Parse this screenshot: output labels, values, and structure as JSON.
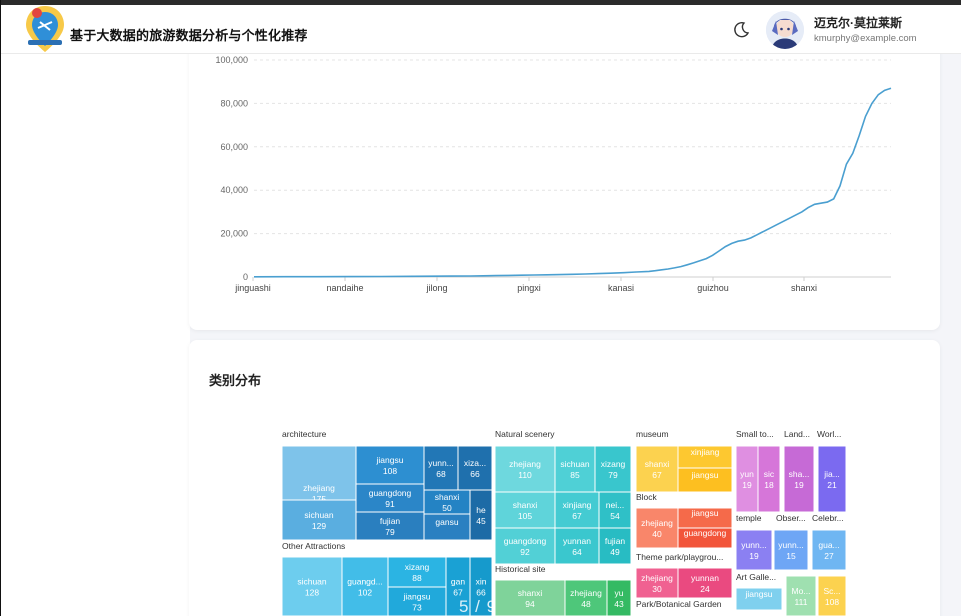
{
  "header": {
    "app_title": "基于大数据的旅游数据分析与个性化推荐",
    "user_name": "迈克尔·莫拉莱斯",
    "user_email": "kmurphy@example.com"
  },
  "icons": {
    "logo": "map-pin-logo",
    "theme_toggle": "moon-icon",
    "avatar": "avatar-image"
  },
  "section2": {
    "title": "类别分布"
  },
  "page_indicator": "5 / 9",
  "chart_data": [
    {
      "type": "line",
      "color": "#4a9fd0",
      "yticks": [
        "0",
        "20,000",
        "40,000",
        "60,000",
        "80,000",
        "100,000"
      ],
      "xticks": [
        "jinguashi",
        "nandaihe",
        "jilong",
        "pingxi",
        "kanasi",
        "guizhou",
        "shanxi"
      ],
      "ylim": [
        0,
        100000
      ],
      "grid": true,
      "points": [
        [
          0,
          100
        ],
        [
          5,
          130
        ],
        [
          10,
          160
        ],
        [
          15,
          200
        ],
        [
          20,
          250
        ],
        [
          25,
          300
        ],
        [
          28,
          350
        ],
        [
          31,
          400
        ],
        [
          34,
          480
        ],
        [
          36,
          560
        ],
        [
          38,
          640
        ],
        [
          40,
          730
        ],
        [
          42,
          820
        ],
        [
          44,
          900
        ],
        [
          46,
          1000
        ],
        [
          48,
          1100
        ],
        [
          50,
          1250
        ],
        [
          52,
          1400
        ],
        [
          54,
          1550
        ],
        [
          56,
          1750
        ],
        [
          58,
          2000
        ],
        [
          60,
          2300
        ],
        [
          62,
          2600
        ],
        [
          63,
          2900
        ],
        [
          64,
          3300
        ],
        [
          65,
          3700
        ],
        [
          66,
          4200
        ],
        [
          67,
          4800
        ],
        [
          68,
          5600
        ],
        [
          69,
          6500
        ],
        [
          70,
          7500
        ],
        [
          71,
          8500
        ],
        [
          72,
          10000
        ],
        [
          73,
          12000
        ],
        [
          74,
          14000
        ],
        [
          75,
          15500
        ],
        [
          76,
          16500
        ],
        [
          77,
          17000
        ],
        [
          78,
          18000
        ],
        [
          79,
          19500
        ],
        [
          80,
          21000
        ],
        [
          81,
          22500
        ],
        [
          82,
          24000
        ],
        [
          83,
          25500
        ],
        [
          84,
          27000
        ],
        [
          85,
          28500
        ],
        [
          86,
          30000
        ],
        [
          87,
          32000
        ],
        [
          88,
          33500
        ],
        [
          89,
          34000
        ],
        [
          90,
          34500
        ],
        [
          91,
          36000
        ],
        [
          92,
          42000
        ],
        [
          93,
          52000
        ],
        [
          94,
          57000
        ],
        [
          95,
          65000
        ],
        [
          96,
          74000
        ],
        [
          97,
          80000
        ],
        [
          98,
          84000
        ],
        [
          99,
          86000
        ],
        [
          100,
          87000
        ]
      ]
    },
    {
      "type": "treemap",
      "cells": [
        {
          "label": "zhejiang",
          "value": 175
        },
        {
          "label": "sichuan",
          "value": 129
        },
        {
          "label": "jiangsu",
          "value": 108
        },
        {
          "label": "guangdong",
          "value": 91
        },
        {
          "label": "fujian",
          "value": 79
        },
        {
          "label": "yunn...",
          "value": 68
        },
        {
          "label": "xiza...",
          "value": 66
        },
        {
          "label": "shanxi",
          "value": 50
        },
        {
          "label": "he",
          "value": 45
        },
        {
          "label": "gansu",
          "value": ""
        },
        {
          "label": "sichuan",
          "value": 128
        },
        {
          "label": "guangd...",
          "value": 102
        },
        {
          "label": "xizang",
          "value": 88
        },
        {
          "label": "jiangsu",
          "value": 73
        },
        {
          "label": "gan",
          "value": 67
        },
        {
          "label": "xin",
          "value": 66
        },
        {
          "label": "zhejiang",
          "value": 110
        },
        {
          "label": "sichuan",
          "value": 85
        },
        {
          "label": "xizang",
          "value": 79
        },
        {
          "label": "shanxi",
          "value": 105
        },
        {
          "label": "xinjiang",
          "value": 67
        },
        {
          "label": "nei...",
          "value": 54
        },
        {
          "label": "guangdong",
          "value": 92
        },
        {
          "label": "yunnan",
          "value": 64
        },
        {
          "label": "fujian",
          "value": 49
        },
        {
          "label": "shanxi",
          "value": 94
        },
        {
          "label": "zhejiang",
          "value": 48
        },
        {
          "label": "yu",
          "value": 43
        },
        {
          "label": "shanxi",
          "value": 67
        },
        {
          "label": "xinjiang",
          "value": ""
        },
        {
          "label": "jiangsu",
          "value": ""
        },
        {
          "label": "zhejiang",
          "value": 40
        },
        {
          "label": "jiangsu",
          "value": ""
        },
        {
          "label": "guangdong",
          "value": ""
        },
        {
          "label": "zhejiang",
          "value": 30
        },
        {
          "label": "yunnan",
          "value": 24
        },
        {
          "label": "yun",
          "value": 19
        },
        {
          "label": "sic",
          "value": 18
        },
        {
          "label": "sha...",
          "value": 19
        },
        {
          "label": "jia...",
          "value": 21
        },
        {
          "label": "yunn...",
          "value": 19
        },
        {
          "label": "yunn...",
          "value": 15
        },
        {
          "label": "gua...",
          "value": 27
        },
        {
          "label": "jiangsu",
          "value": ""
        },
        {
          "label": "Mo...",
          "value": 111
        },
        {
          "label": "Sc...",
          "value": 108
        }
      ],
      "groups": [
        "architecture",
        "Natural scenery",
        "museum",
        "Small to...",
        "Land...",
        "Worl...",
        "Other Attractions",
        "Historical site",
        "Block",
        "Theme park/playgrou...",
        "Park/Botanical Garden",
        "temple",
        "Obser...",
        "Celebr...",
        "Art Galle..."
      ]
    }
  ]
}
